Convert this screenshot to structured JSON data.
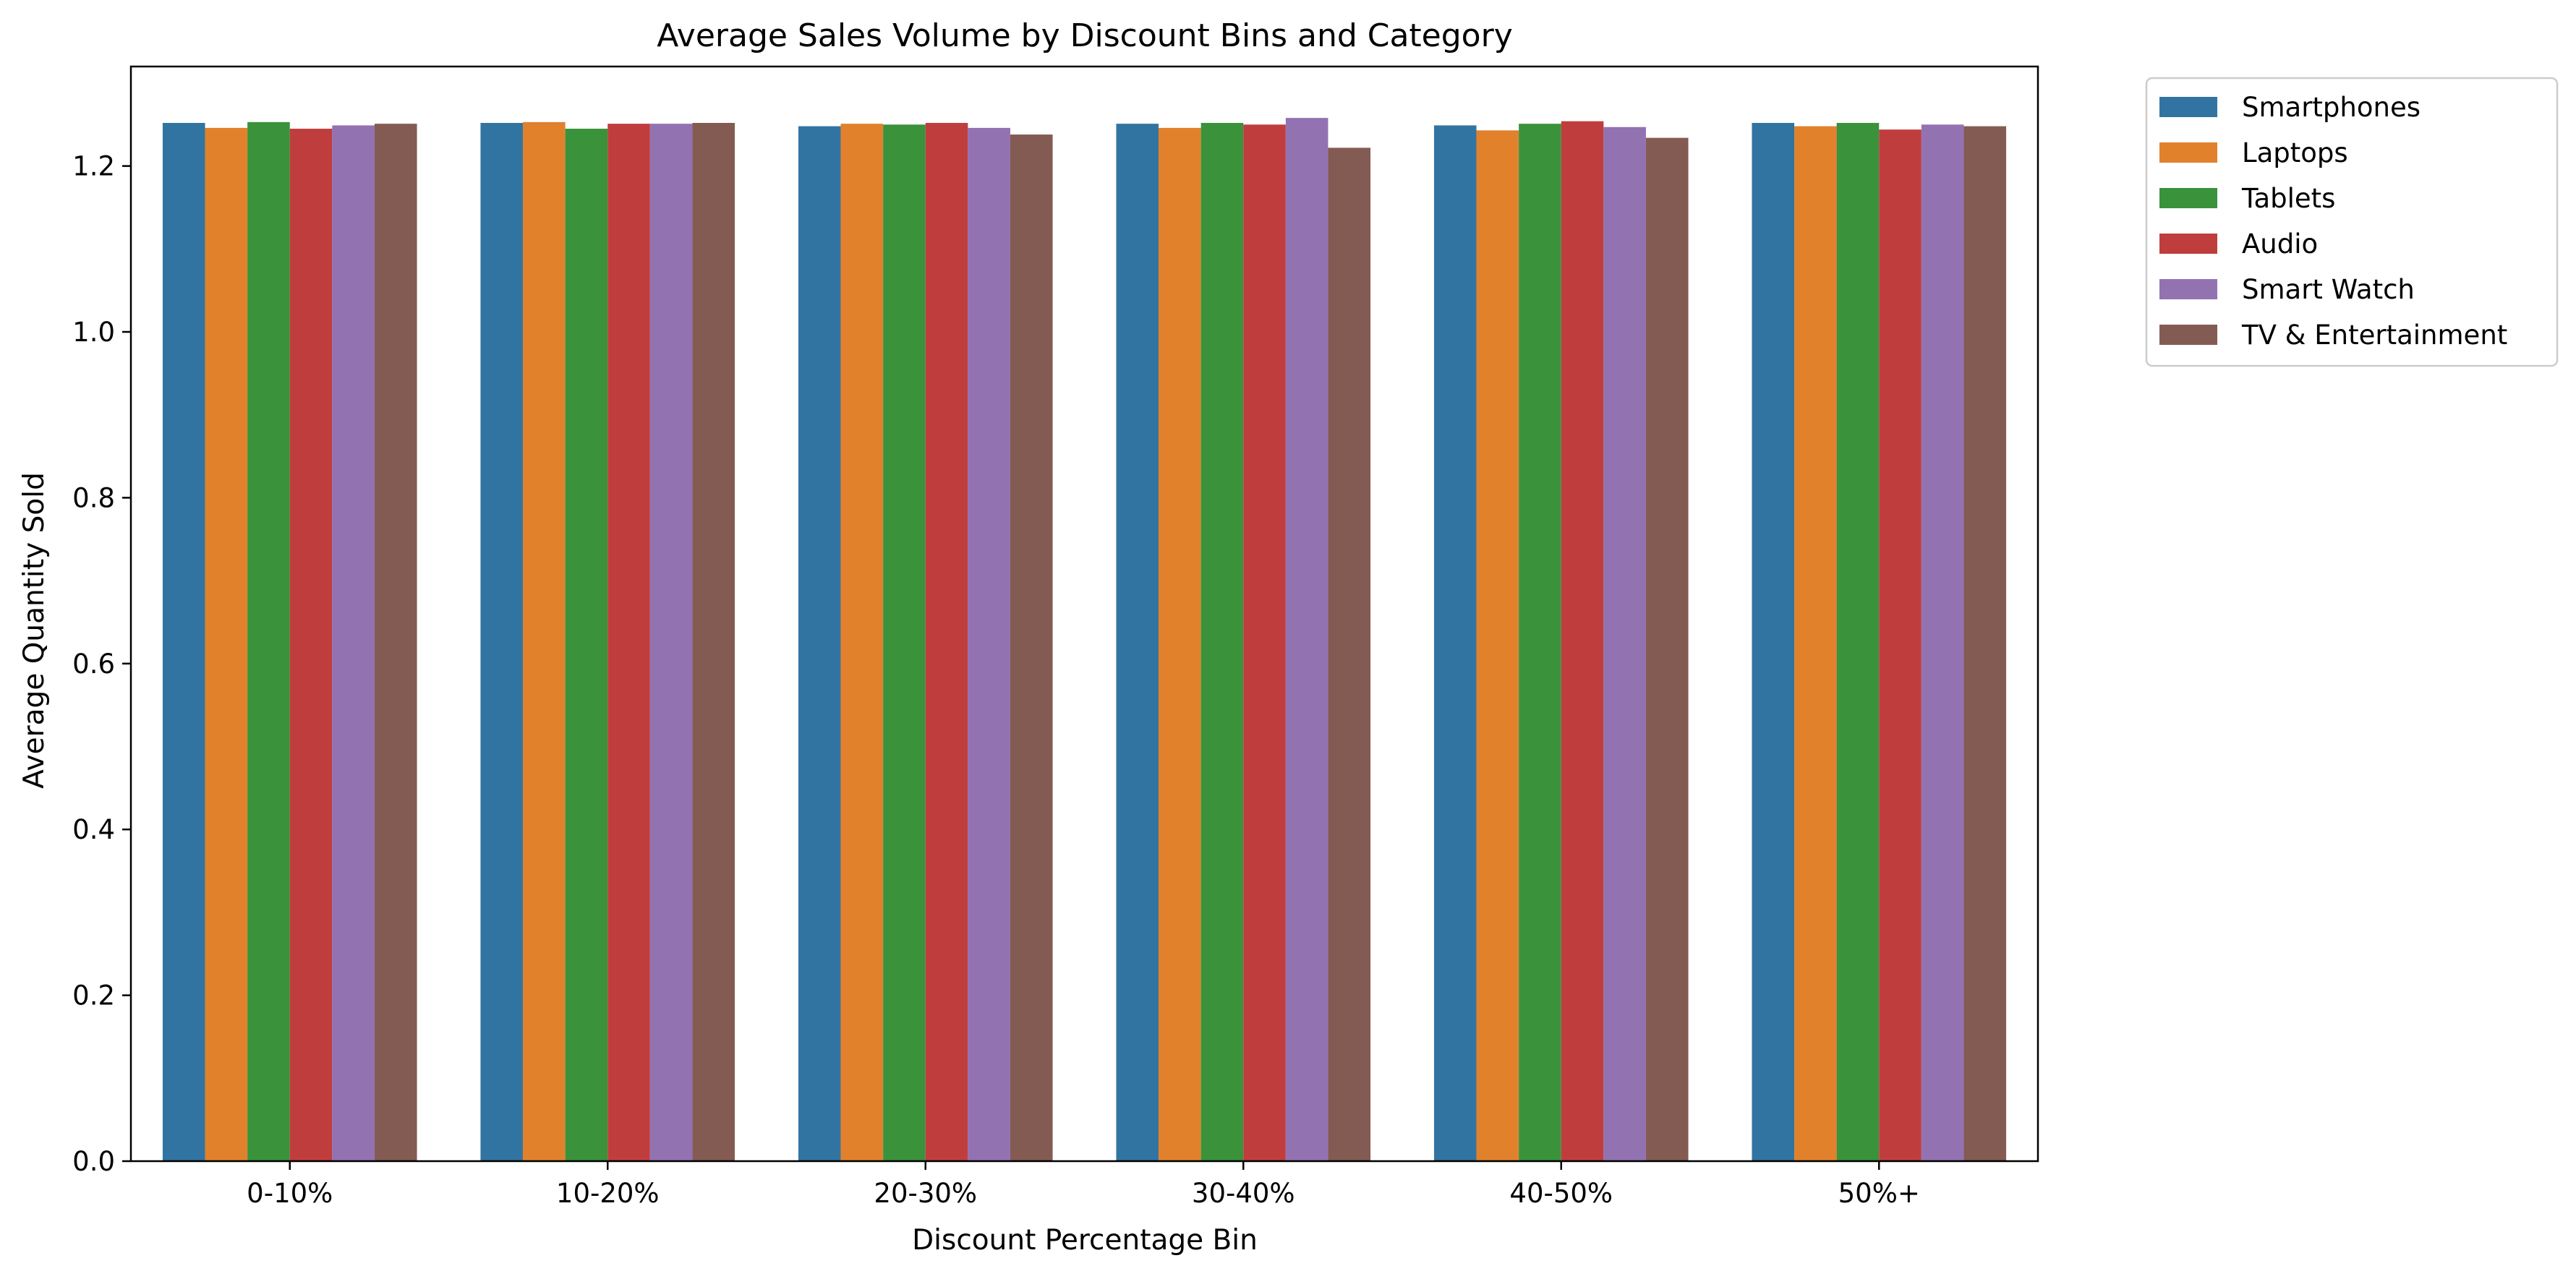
{
  "chart_data": {
    "type": "bar",
    "title": "Average Sales Volume by Discount Bins and Category",
    "xlabel": "Discount Percentage Bin",
    "ylabel": "Average Quantity Sold",
    "categories": [
      "0-10%",
      "10-20%",
      "20-30%",
      "30-40%",
      "40-50%",
      "50%+"
    ],
    "ylim": [
      0,
      1.32
    ],
    "yticks": [
      0.0,
      0.2,
      0.4,
      0.6,
      0.8,
      1.0,
      1.2
    ],
    "ytick_labels": [
      "0.0",
      "0.2",
      "0.4",
      "0.6",
      "0.8",
      "1.0",
      "1.2"
    ],
    "grid": false,
    "legend_position": "outside-top-right",
    "series": [
      {
        "name": "Smartphones",
        "color": "#3274a1",
        "values": [
          1.252,
          1.252,
          1.248,
          1.251,
          1.249,
          1.252
        ]
      },
      {
        "name": "Laptops",
        "color": "#e1812c",
        "values": [
          1.246,
          1.253,
          1.251,
          1.246,
          1.243,
          1.248
        ]
      },
      {
        "name": "Tablets",
        "color": "#3a923a",
        "values": [
          1.253,
          1.245,
          1.25,
          1.252,
          1.251,
          1.252
        ]
      },
      {
        "name": "Audio",
        "color": "#c03d3e",
        "values": [
          1.245,
          1.251,
          1.252,
          1.25,
          1.254,
          1.244
        ]
      },
      {
        "name": "Smart Watch",
        "color": "#9372b2",
        "values": [
          1.249,
          1.251,
          1.246,
          1.258,
          1.247,
          1.25
        ]
      },
      {
        "name": "TV & Entertainment",
        "color": "#845b53",
        "values": [
          1.251,
          1.252,
          1.238,
          1.222,
          1.234,
          1.248
        ]
      }
    ]
  }
}
